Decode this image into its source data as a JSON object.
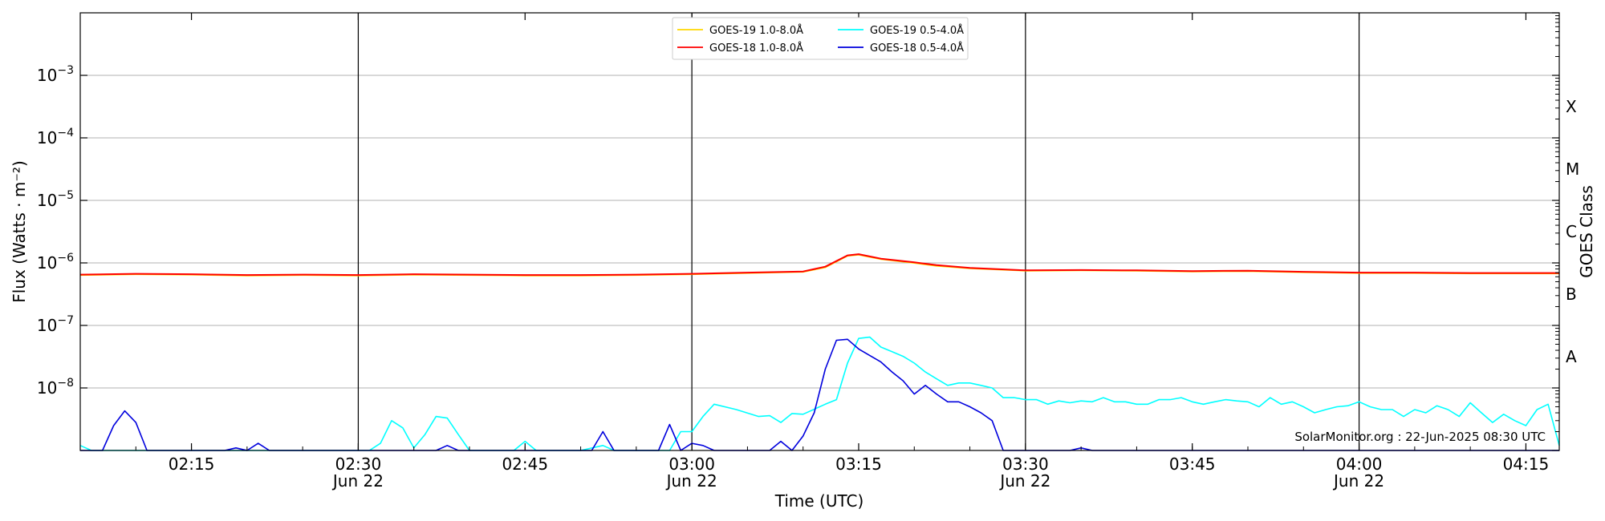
{
  "chart_data": {
    "type": "line",
    "title": "",
    "xlabel": "Time (UTC)",
    "ylabel": "Flux (Watts · m⁻²)",
    "y2label": "GOES Class",
    "yscale": "log",
    "xlim": [
      "02:05",
      "04:18"
    ],
    "ylim": [
      1e-09,
      0.01
    ],
    "grid": "horizontal at decades, vertical at half hours",
    "legend_position": "top-center",
    "credit": "SolarMonitor.org : 22-Jun-2025 08:30 UTC",
    "x_ticks": [
      {
        "time": "02:15",
        "label": "02:15",
        "sublabel": ""
      },
      {
        "time": "02:30",
        "label": "02:30",
        "sublabel": "Jun 22"
      },
      {
        "time": "02:45",
        "label": "02:45",
        "sublabel": ""
      },
      {
        "time": "03:00",
        "label": "03:00",
        "sublabel": "Jun 22"
      },
      {
        "time": "03:15",
        "label": "03:15",
        "sublabel": ""
      },
      {
        "time": "03:30",
        "label": "03:30",
        "sublabel": "Jun 22"
      },
      {
        "time": "03:45",
        "label": "03:45",
        "sublabel": ""
      },
      {
        "time": "04:00",
        "label": "04:00",
        "sublabel": "Jun 22"
      },
      {
        "time": "04:15",
        "label": "04:15",
        "sublabel": ""
      }
    ],
    "y_ticks": [
      {
        "value": 1e-08,
        "base": "10",
        "exp": "−8"
      },
      {
        "value": 1e-07,
        "base": "10",
        "exp": "−7"
      },
      {
        "value": 1e-06,
        "base": "10",
        "exp": "−6"
      },
      {
        "value": 1e-05,
        "base": "10",
        "exp": "−5"
      },
      {
        "value": 0.0001,
        "base": "10",
        "exp": "−4"
      },
      {
        "value": 0.001,
        "base": "10",
        "exp": "−3"
      }
    ],
    "goes_classes": [
      {
        "label": "A",
        "value": 3.16e-08
      },
      {
        "label": "B",
        "value": 3.16e-07
      },
      {
        "label": "C",
        "value": 3.16e-06
      },
      {
        "label": "M",
        "value": 3.16e-05
      },
      {
        "label": "X",
        "value": 0.000316
      }
    ],
    "series": [
      {
        "name": "GOES-19 1.0-8.0Å",
        "color": "#ffd700",
        "x": [
          "02:05",
          "02:10",
          "02:15",
          "02:20",
          "02:25",
          "02:30",
          "02:35",
          "02:40",
          "02:45",
          "02:50",
          "02:55",
          "03:00",
          "03:05",
          "03:10",
          "03:12",
          "03:14",
          "03:15",
          "03:17",
          "03:20",
          "03:22",
          "03:25",
          "03:30",
          "03:35",
          "03:40",
          "03:45",
          "03:50",
          "03:55",
          "04:00",
          "04:05",
          "04:10",
          "04:15",
          "04:18"
        ],
        "y": [
          6.4e-07,
          6.6e-07,
          6.5e-07,
          6.3e-07,
          6.4e-07,
          6.3e-07,
          6.5e-07,
          6.4e-07,
          6.3e-07,
          6.3e-07,
          6.4e-07,
          6.6e-07,
          6.9e-07,
          7.2e-07,
          8.5e-07,
          1.3e-06,
          1.35e-06,
          1.15e-06,
          1e-06,
          9e-07,
          8.2e-07,
          7.5e-07,
          7.6e-07,
          7.5e-07,
          7.3e-07,
          7.4e-07,
          7.1e-07,
          6.9e-07,
          6.9e-07,
          6.8e-07,
          6.8e-07,
          6.8e-07
        ]
      },
      {
        "name": "GOES-18 1.0-8.0Å",
        "color": "#ff0000",
        "x": [
          "02:05",
          "02:10",
          "02:15",
          "02:20",
          "02:25",
          "02:30",
          "02:35",
          "02:40",
          "02:45",
          "02:50",
          "02:55",
          "03:00",
          "03:05",
          "03:10",
          "03:12",
          "03:14",
          "03:15",
          "03:17",
          "03:20",
          "03:22",
          "03:25",
          "03:30",
          "03:35",
          "03:40",
          "03:45",
          "03:50",
          "03:55",
          "04:00",
          "04:05",
          "04:10",
          "04:15",
          "04:18"
        ],
        "y": [
          6.5e-07,
          6.7e-07,
          6.6e-07,
          6.4e-07,
          6.5e-07,
          6.4e-07,
          6.6e-07,
          6.5e-07,
          6.4e-07,
          6.4e-07,
          6.5e-07,
          6.7e-07,
          7e-07,
          7.3e-07,
          8.7e-07,
          1.32e-06,
          1.38e-06,
          1.17e-06,
          1.02e-06,
          9.2e-07,
          8.3e-07,
          7.6e-07,
          7.7e-07,
          7.6e-07,
          7.4e-07,
          7.5e-07,
          7.2e-07,
          7e-07,
          7e-07,
          6.9e-07,
          6.9e-07,
          6.9e-07
        ]
      },
      {
        "name": "GOES-19 0.5-4.0Å",
        "color": "#00ffff",
        "x": [
          "02:05",
          "02:06",
          "02:07",
          "02:30",
          "02:31",
          "02:32",
          "02:33",
          "02:34",
          "02:35",
          "02:36",
          "02:37",
          "02:38",
          "02:39",
          "02:40",
          "02:41",
          "02:42",
          "02:43",
          "02:44",
          "02:45",
          "02:46",
          "02:47",
          "02:50",
          "02:52",
          "02:53",
          "02:55",
          "02:58",
          "02:59",
          "03:00",
          "03:01",
          "03:02",
          "03:04",
          "03:06",
          "03:07",
          "03:08",
          "03:09",
          "03:10",
          "03:12",
          "03:13",
          "03:14",
          "03:15",
          "03:16",
          "03:17",
          "03:18",
          "03:19",
          "03:20",
          "03:21",
          "03:22",
          "03:23",
          "03:24",
          "03:25",
          "03:26",
          "03:27",
          "03:28",
          "03:29",
          "03:30",
          "03:31",
          "03:32",
          "03:33",
          "03:34",
          "03:35",
          "03:36",
          "03:37",
          "03:38",
          "03:39",
          "03:40",
          "03:41",
          "03:42",
          "03:43",
          "03:44",
          "03:45",
          "03:46",
          "03:47",
          "03:48",
          "03:49",
          "03:50",
          "03:51",
          "03:52",
          "03:53",
          "03:54",
          "03:55",
          "03:56",
          "03:57",
          "03:58",
          "03:59",
          "04:00",
          "04:01",
          "04:02",
          "04:03",
          "04:04",
          "04:05",
          "04:06",
          "04:07",
          "04:08",
          "04:09",
          "04:10",
          "04:11",
          "04:12",
          "04:13",
          "04:14",
          "04:15",
          "04:16",
          "04:17",
          "04:18"
        ],
        "y": [
          1.2e-09,
          1e-09,
          1e-09,
          1e-09,
          1e-09,
          1.3e-09,
          3e-09,
          2.3e-09,
          1.1e-09,
          1.8e-09,
          3.5e-09,
          3.3e-09,
          1.8e-09,
          1e-09,
          1e-09,
          1e-09,
          1e-09,
          1e-09,
          1.4e-09,
          1e-09,
          1e-09,
          1e-09,
          1.2e-09,
          1e-09,
          1e-09,
          1e-09,
          2e-09,
          2e-09,
          3.5e-09,
          5.5e-09,
          4.5e-09,
          3.5e-09,
          3.6e-09,
          2.8e-09,
          3.9e-09,
          3.8e-09,
          5.5e-09,
          6.5e-09,
          2.5e-08,
          6.2e-08,
          6.5e-08,
          4.5e-08,
          3.8e-08,
          3.2e-08,
          2.5e-08,
          1.8e-08,
          1.4e-08,
          1.1e-08,
          1.2e-08,
          1.2e-08,
          1.1e-08,
          1e-08,
          7e-09,
          7e-09,
          6.5e-09,
          6.5e-09,
          5.5e-09,
          6.2e-09,
          5.8e-09,
          6.2e-09,
          6e-09,
          7e-09,
          6e-09,
          6e-09,
          5.5e-09,
          5.5e-09,
          6.5e-09,
          6.5e-09,
          7e-09,
          6e-09,
          5.5e-09,
          6e-09,
          6.5e-09,
          6.2e-09,
          6e-09,
          5e-09,
          7e-09,
          5.5e-09,
          6e-09,
          5e-09,
          4e-09,
          4.5e-09,
          5e-09,
          5.2e-09,
          6e-09,
          5e-09,
          4.5e-09,
          4.5e-09,
          3.5e-09,
          4.5e-09,
          4e-09,
          5.2e-09,
          4.5e-09,
          3.5e-09,
          5.8e-09,
          4e-09,
          2.8e-09,
          3.8e-09,
          3e-09,
          2.5e-09,
          4.5e-09,
          5.5e-09,
          1.2e-09
        ]
      },
      {
        "name": "GOES-18 0.5-4.0Å",
        "color": "#0000dd",
        "x": [
          "02:05",
          "02:07",
          "02:08",
          "02:09",
          "02:10",
          "02:11",
          "02:12",
          "02:18",
          "02:19",
          "02:20",
          "02:21",
          "02:22",
          "02:23",
          "02:37",
          "02:38",
          "02:39",
          "02:51",
          "02:52",
          "02:53",
          "02:57",
          "02:58",
          "02:59",
          "03:00",
          "03:01",
          "03:02",
          "03:07",
          "03:08",
          "03:09",
          "03:10",
          "03:11",
          "03:12",
          "03:13",
          "03:14",
          "03:15",
          "03:16",
          "03:17",
          "03:18",
          "03:19",
          "03:20",
          "03:21",
          "03:22",
          "03:23",
          "03:24",
          "03:25",
          "03:26",
          "03:27",
          "03:28",
          "03:29",
          "03:34",
          "03:35",
          "03:36",
          "04:18"
        ],
        "y": [
          1e-09,
          1e-09,
          2.5e-09,
          4.3e-09,
          2.8e-09,
          1e-09,
          1e-09,
          1e-09,
          1.1e-09,
          1e-09,
          1.3e-09,
          1e-09,
          1e-09,
          1e-09,
          1.2e-09,
          1e-09,
          1e-09,
          2e-09,
          1e-09,
          1e-09,
          2.6e-09,
          1e-09,
          1.3e-09,
          1.2e-09,
          1e-09,
          1e-09,
          1.4e-09,
          1e-09,
          1.7e-09,
          4e-09,
          2e-08,
          5.8e-08,
          6e-08,
          4.2e-08,
          3.3e-08,
          2.6e-08,
          1.8e-08,
          1.3e-08,
          8e-09,
          1.1e-08,
          8e-09,
          6e-09,
          6e-09,
          5e-09,
          4e-09,
          3e-09,
          1e-09,
          1e-09,
          1e-09,
          1.1e-09,
          1e-09,
          1e-09
        ]
      }
    ],
    "legend_order": [
      0,
      2,
      1,
      3
    ]
  }
}
